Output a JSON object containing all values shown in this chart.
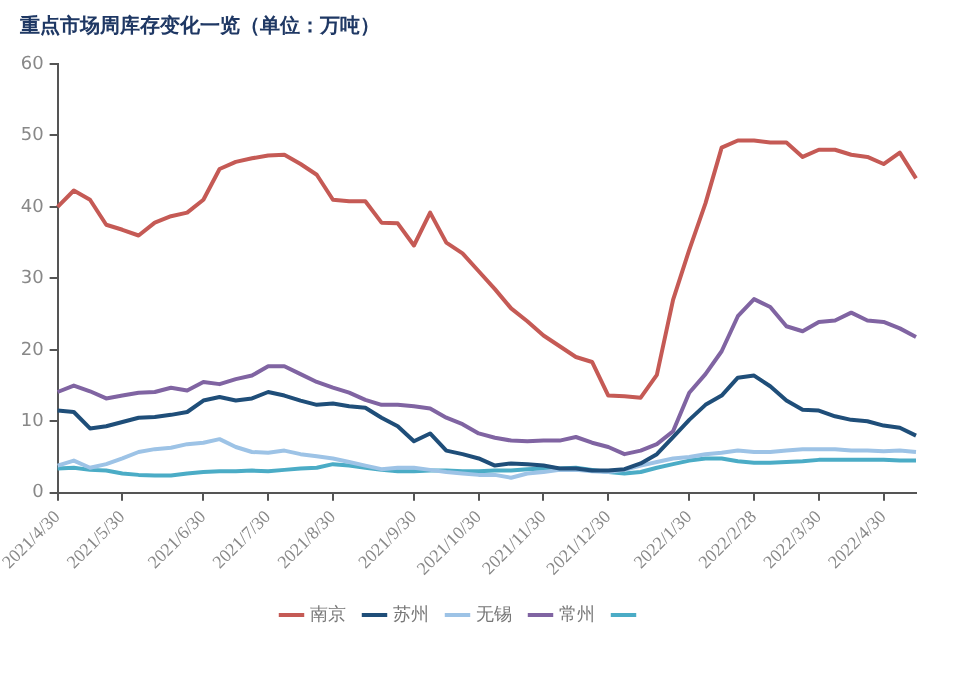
{
  "chart_data": {
    "type": "line",
    "title": "重点市场周库存变化一览（单位：万吨）",
    "categories": [
      "2021/4/30",
      null,
      null,
      null,
      "2021/5/30",
      null,
      null,
      null,
      null,
      "2021/6/30",
      null,
      null,
      null,
      "2021/7/30",
      null,
      null,
      null,
      "2021/8/30",
      null,
      null,
      null,
      null,
      "2021/9/30",
      null,
      null,
      null,
      "2021/10/30",
      null,
      null,
      null,
      "2021/11/30",
      null,
      null,
      null,
      "2021/12/30",
      null,
      null,
      null,
      null,
      "2022/1/30",
      null,
      null,
      null,
      "2022/2/28",
      null,
      null,
      null,
      "2022/3/30",
      null,
      null,
      null,
      "2022/4/30",
      null,
      null
    ],
    "series": [
      {
        "name": "南京",
        "color": "#c55a55",
        "values": [
          40,
          42.3,
          41,
          37.5,
          36.8,
          36,
          37.8,
          38.7,
          39.2,
          41,
          45.3,
          46.3,
          46.8,
          47.2,
          47.3,
          46,
          44.5,
          41,
          40.8,
          40.8,
          37.8,
          37.7,
          34.6,
          39.2,
          35,
          33.5,
          31,
          28.5,
          25.8,
          24,
          22,
          20.5,
          19,
          18.3,
          13.6,
          13.5,
          13.3,
          16.5,
          27,
          34,
          40.5,
          48.3,
          49.3,
          49.3,
          49,
          49,
          47,
          48,
          48,
          47.3,
          47,
          46,
          47.6,
          44
        ]
      },
      {
        "name": "苏州",
        "color": "#1f4e79",
        "values": [
          11.5,
          11.3,
          9,
          9.3,
          9.9,
          10.5,
          10.6,
          10.9,
          11.3,
          12.9,
          13.4,
          12.9,
          13.2,
          14.1,
          13.6,
          12.9,
          12.3,
          12.5,
          12.1,
          11.9,
          10.5,
          9.3,
          7.2,
          8.3,
          5.9,
          5.4,
          4.8,
          3.8,
          4.1,
          4,
          3.8,
          3.4,
          3.4,
          3.1,
          3.1,
          3.3,
          4.1,
          5.4,
          7.8,
          10.2,
          12.3,
          13.6,
          16.1,
          16.4,
          14.9,
          12.9,
          11.6,
          11.5,
          10.7,
          10.2,
          10,
          9.4,
          9.1,
          8
        ]
      },
      {
        "name": "无锡",
        "color": "#9dc3e6",
        "values": [
          3.8,
          4.5,
          3.5,
          4,
          4.8,
          5.7,
          6.1,
          6.3,
          6.8,
          7,
          7.5,
          6.4,
          5.7,
          5.6,
          5.9,
          5.4,
          5.1,
          4.8,
          4.3,
          3.8,
          3.3,
          3.5,
          3.5,
          3.2,
          2.9,
          2.7,
          2.5,
          2.5,
          2.1,
          2.7,
          2.9,
          3.2,
          3.2,
          3,
          2.9,
          3.2,
          3.8,
          4.3,
          4.8,
          5,
          5.4,
          5.6,
          5.9,
          5.7,
          5.7,
          5.9,
          6.1,
          6.1,
          6.1,
          5.9,
          5.9,
          5.8,
          5.9,
          5.7
        ]
      },
      {
        "name": "常州",
        "color": "#8064a2",
        "values": [
          14.1,
          15,
          14.2,
          13.2,
          13.6,
          14,
          14.1,
          14.7,
          14.3,
          15.5,
          15.2,
          15.9,
          16.4,
          17.7,
          17.7,
          16.6,
          15.5,
          14.7,
          14,
          13,
          12.3,
          12.3,
          12.1,
          11.8,
          10.5,
          9.6,
          8.3,
          7.7,
          7.3,
          7.2,
          7.3,
          7.3,
          7.8,
          7,
          6.4,
          5.4,
          5.9,
          6.8,
          8.6,
          14,
          16.6,
          19.8,
          24.7,
          27.1,
          26,
          23.3,
          22.6,
          23.9,
          24.1,
          25.2,
          24.1,
          23.9,
          23,
          21.8
        ]
      },
      {
        "color": "#4bacc6",
        "values": [
          3.4,
          3.5,
          3.2,
          3.1,
          2.7,
          2.5,
          2.4,
          2.4,
          2.7,
          2.9,
          3,
          3,
          3.1,
          3,
          3.2,
          3.4,
          3.5,
          4,
          3.8,
          3.5,
          3.2,
          3,
          3,
          3.1,
          3.1,
          3,
          3,
          3.1,
          3.1,
          3.3,
          3.4,
          3.4,
          3.5,
          3.2,
          2.9,
          2.7,
          2.9,
          3.5,
          4,
          4.5,
          4.8,
          4.8,
          4.4,
          4.2,
          4.2,
          4.3,
          4.4,
          4.6,
          4.6,
          4.6,
          4.6,
          4.6,
          4.5,
          4.5
        ]
      }
    ],
    "ylim": [
      0,
      60
    ],
    "yticks": [
      0,
      10,
      20,
      30,
      40,
      50,
      60
    ],
    "legend": "bottom"
  }
}
